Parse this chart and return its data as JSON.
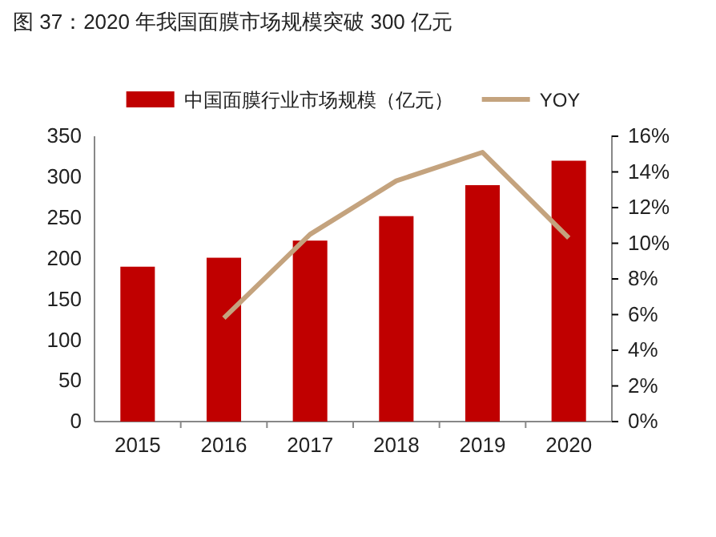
{
  "chart_data": {
    "type": "bar",
    "title": "图 37：2020 年我国面膜市场规模突破 300 亿元",
    "categories": [
      "2015",
      "2016",
      "2017",
      "2018",
      "2019",
      "2020"
    ],
    "series": [
      {
        "name": "中国面膜行业市场规模（亿元）",
        "color": "#c00000",
        "values": [
          190,
          201,
          222,
          252,
          290,
          320
        ]
      },
      {
        "name": "YOY",
        "type": "line",
        "axis": "y2",
        "color": "#c4a37e",
        "values": [
          null,
          5.8,
          10.5,
          13.5,
          15.1,
          10.3
        ]
      }
    ],
    "ylim": [
      0,
      350
    ],
    "yticks": [
      0,
      50,
      100,
      150,
      200,
      250,
      300,
      350
    ],
    "y2lim": [
      0,
      16
    ],
    "y2ticks": [
      {
        "value": 0,
        "label": "0%"
      },
      {
        "value": 2,
        "label": "2%"
      },
      {
        "value": 4,
        "label": "4%"
      },
      {
        "value": 6,
        "label": "6%"
      },
      {
        "value": 8,
        "label": "8%"
      },
      {
        "value": 10,
        "label": "10%"
      },
      {
        "value": 12,
        "label": "12%"
      },
      {
        "value": 14,
        "label": "14%"
      },
      {
        "value": 16,
        "label": "16%"
      }
    ],
    "grid": false,
    "legend": "top",
    "marker": "none",
    "line_style": "solid"
  }
}
